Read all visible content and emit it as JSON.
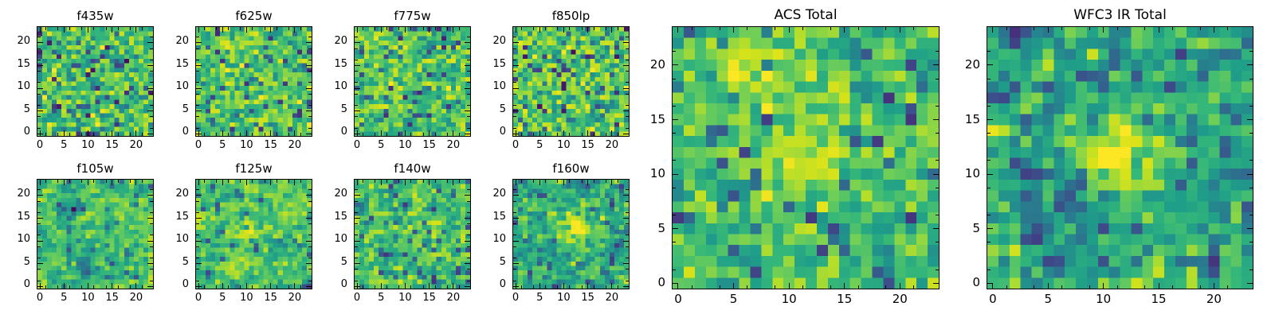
{
  "figure": {
    "background": "#ffffff",
    "text_color": "#000000",
    "axes_border_color": "#000000",
    "content_note": "Grid of pixelated astronomical image cutouts rendered as viridis heatmaps"
  },
  "colormap": {
    "name": "viridis",
    "stops": [
      [
        0.0,
        "#440154"
      ],
      [
        0.1,
        "#482878"
      ],
      [
        0.2,
        "#3e4989"
      ],
      [
        0.3,
        "#31688e"
      ],
      [
        0.4,
        "#26828e"
      ],
      [
        0.5,
        "#1f9e89"
      ],
      [
        0.6,
        "#35b779"
      ],
      [
        0.7,
        "#6ece58"
      ],
      [
        0.8,
        "#b5de2b"
      ],
      [
        0.9,
        "#d8e219"
      ],
      [
        1.0,
        "#fde725"
      ]
    ]
  },
  "chart_data": [
    {
      "type": "heatmap",
      "title": "f435w",
      "grid": [
        24,
        24
      ],
      "xlim": [
        -0.5,
        23.5
      ],
      "ylim": [
        -0.5,
        23.5
      ],
      "xticks": [
        0,
        5,
        10,
        15,
        20
      ],
      "yticks": [
        0,
        5,
        10,
        15,
        20
      ],
      "minor_tick_step": 2.5,
      "colormap": "viridis",
      "value_range": [
        0,
        1
      ],
      "noise_model": {
        "seed": 101,
        "mean": 0.63,
        "sigma": 0.145,
        "outlier_prob": 0.075,
        "outlier_low": 0.02,
        "outlier_high": 0.28,
        "smooth": 0
      },
      "features": []
    },
    {
      "type": "heatmap",
      "title": "f625w",
      "grid": [
        24,
        24
      ],
      "xlim": [
        -0.5,
        23.5
      ],
      "ylim": [
        -0.5,
        23.5
      ],
      "xticks": [
        0,
        5,
        10,
        15,
        20
      ],
      "yticks": [
        0,
        5,
        10,
        15,
        20
      ],
      "minor_tick_step": 2.5,
      "colormap": "viridis",
      "value_range": [
        0,
        1
      ],
      "noise_model": {
        "seed": 202,
        "mean": 0.65,
        "sigma": 0.14,
        "outlier_prob": 0.065,
        "outlier_low": 0.02,
        "outlier_high": 0.28,
        "smooth": 0.15
      },
      "features": [
        {
          "shape": "gaussian",
          "label": "bright-source",
          "x": 7,
          "y": 19.5,
          "sigma": 1.5,
          "amplitude": 0.3
        }
      ]
    },
    {
      "type": "heatmap",
      "title": "f775w",
      "grid": [
        24,
        24
      ],
      "xlim": [
        -0.5,
        23.5
      ],
      "ylim": [
        -0.5,
        23.5
      ],
      "xticks": [
        0,
        5,
        10,
        15,
        20
      ],
      "yticks": [
        0,
        5,
        10,
        15,
        20
      ],
      "minor_tick_step": 2.5,
      "colormap": "viridis",
      "value_range": [
        0,
        1
      ],
      "noise_model": {
        "seed": 303,
        "mean": 0.64,
        "sigma": 0.14,
        "outlier_prob": 0.07,
        "outlier_low": 0.02,
        "outlier_high": 0.28,
        "smooth": 0.15
      },
      "features": [
        {
          "shape": "gaussian",
          "label": "faint-bright-patch",
          "x": 7,
          "y": 18,
          "sigma": 1.3,
          "amplitude": 0.2
        },
        {
          "shape": "gaussian",
          "label": "dark-patch",
          "x": 19.5,
          "y": 13,
          "sigma": 1.1,
          "amplitude": -0.28
        }
      ]
    },
    {
      "type": "heatmap",
      "title": "f850lp",
      "grid": [
        24,
        24
      ],
      "xlim": [
        -0.5,
        23.5
      ],
      "ylim": [
        -0.5,
        23.5
      ],
      "xticks": [
        0,
        5,
        10,
        15,
        20
      ],
      "yticks": [
        0,
        5,
        10,
        15,
        20
      ],
      "minor_tick_step": 2.5,
      "colormap": "viridis",
      "value_range": [
        0,
        1
      ],
      "noise_model": {
        "seed": 404,
        "mean": 0.65,
        "sigma": 0.145,
        "outlier_prob": 0.075,
        "outlier_low": 0.02,
        "outlier_high": 0.28,
        "smooth": 0
      },
      "features": [
        {
          "shape": "gaussian",
          "label": "faint-bright-patch",
          "x": 5,
          "y": 12,
          "sigma": 2.2,
          "amplitude": 0.12
        }
      ]
    },
    {
      "type": "heatmap",
      "title": "f105w",
      "grid": [
        24,
        24
      ],
      "xlim": [
        -0.5,
        23.5
      ],
      "ylim": [
        -0.5,
        23.5
      ],
      "xticks": [
        0,
        5,
        10,
        15,
        20
      ],
      "yticks": [
        0,
        5,
        10,
        15,
        20
      ],
      "minor_tick_step": 2.5,
      "colormap": "viridis",
      "value_range": [
        0,
        1
      ],
      "noise_model": {
        "seed": 505,
        "mean": 0.63,
        "sigma": 0.13,
        "outlier_prob": 0.05,
        "outlier_low": 0.02,
        "outlier_high": 0.28,
        "smooth": 0.4
      },
      "features": [
        {
          "shape": "gaussian",
          "label": "dark-patch",
          "x": 9,
          "y": 4,
          "sigma": 1.4,
          "amplitude": -0.3
        },
        {
          "shape": "gaussian",
          "label": "dark-patch",
          "x": 7.5,
          "y": 17.5,
          "sigma": 1.0,
          "amplitude": -0.25
        }
      ]
    },
    {
      "type": "heatmap",
      "title": "f125w",
      "grid": [
        24,
        24
      ],
      "xlim": [
        -0.5,
        23.5
      ],
      "ylim": [
        -0.5,
        23.5
      ],
      "xticks": [
        0,
        5,
        10,
        15,
        20
      ],
      "yticks": [
        0,
        5,
        10,
        15,
        20
      ],
      "minor_tick_step": 2.5,
      "colormap": "viridis",
      "value_range": [
        0,
        1
      ],
      "noise_model": {
        "seed": 606,
        "mean": 0.65,
        "sigma": 0.13,
        "outlier_prob": 0.05,
        "outlier_low": 0.02,
        "outlier_high": 0.28,
        "smooth": 0.4
      },
      "features": [
        {
          "shape": "gaussian",
          "label": "faint-bright-source",
          "x": 10,
          "y": 12.5,
          "sigma": 2.3,
          "amplitude": 0.2
        }
      ]
    },
    {
      "type": "heatmap",
      "title": "f140w",
      "grid": [
        24,
        24
      ],
      "xlim": [
        -0.5,
        23.5
      ],
      "ylim": [
        -0.5,
        23.5
      ],
      "xticks": [
        0,
        5,
        10,
        15,
        20
      ],
      "yticks": [
        0,
        5,
        10,
        15,
        20
      ],
      "minor_tick_step": 2.5,
      "colormap": "viridis",
      "value_range": [
        0,
        1
      ],
      "noise_model": {
        "seed": 707,
        "mean": 0.64,
        "sigma": 0.14,
        "outlier_prob": 0.06,
        "outlier_low": 0.02,
        "outlier_high": 0.28,
        "smooth": 0.3
      },
      "features": []
    },
    {
      "type": "heatmap",
      "title": "f160w",
      "grid": [
        24,
        24
      ],
      "xlim": [
        -0.5,
        23.5
      ],
      "ylim": [
        -0.5,
        23.5
      ],
      "xticks": [
        0,
        5,
        10,
        15,
        20
      ],
      "yticks": [
        0,
        5,
        10,
        15,
        20
      ],
      "minor_tick_step": 2.5,
      "colormap": "viridis",
      "value_range": [
        0,
        1
      ],
      "noise_model": {
        "seed": 808,
        "mean": 0.58,
        "sigma": 0.14,
        "outlier_prob": 0.06,
        "outlier_low": 0.02,
        "outlier_high": 0.28,
        "smooth": 0.4
      },
      "features": [
        {
          "shape": "gaussian",
          "label": "bright-source-center",
          "x": 12,
          "y": 12.5,
          "sigma": 2.1,
          "amplitude": 0.5
        }
      ]
    },
    {
      "type": "heatmap",
      "title": "ACS Total",
      "grid": [
        24,
        24
      ],
      "xlim": [
        -0.5,
        23.5
      ],
      "ylim": [
        -0.5,
        23.5
      ],
      "xticks": [
        0,
        5,
        10,
        15,
        20
      ],
      "yticks": [
        0,
        5,
        10,
        15,
        20
      ],
      "minor_tick_step": 2.5,
      "colormap": "viridis",
      "value_range": [
        0,
        1
      ],
      "noise_model": {
        "seed": 909,
        "mean": 0.63,
        "sigma": 0.13,
        "outlier_prob": 0.055,
        "outlier_low": 0.02,
        "outlier_high": 0.28,
        "smooth": 0.2
      },
      "features": [
        {
          "shape": "gaussian",
          "label": "bright-source",
          "x": 6.5,
          "y": 19.5,
          "sigma": 1.5,
          "amplitude": 0.38
        },
        {
          "shape": "gaussian",
          "label": "faint-bright-source-center",
          "x": 11.5,
          "y": 11.5,
          "sigma": 2.6,
          "amplitude": 0.22
        }
      ]
    },
    {
      "type": "heatmap",
      "title": "WFC3 IR Total",
      "grid": [
        24,
        24
      ],
      "xlim": [
        -0.5,
        23.5
      ],
      "ylim": [
        -0.5,
        23.5
      ],
      "xticks": [
        0,
        5,
        10,
        15,
        20
      ],
      "yticks": [
        0,
        5,
        10,
        15,
        20
      ],
      "minor_tick_step": 2.5,
      "colormap": "viridis",
      "value_range": [
        0,
        1
      ],
      "noise_model": {
        "seed": 1010,
        "mean": 0.55,
        "sigma": 0.15,
        "outlier_prob": 0.085,
        "outlier_low": 0.02,
        "outlier_high": 0.28,
        "smooth": 0.4
      },
      "features": [
        {
          "shape": "gaussian",
          "label": "bright-source-center",
          "x": 11.5,
          "y": 12,
          "sigma": 2.3,
          "amplitude": 0.55
        }
      ]
    }
  ]
}
